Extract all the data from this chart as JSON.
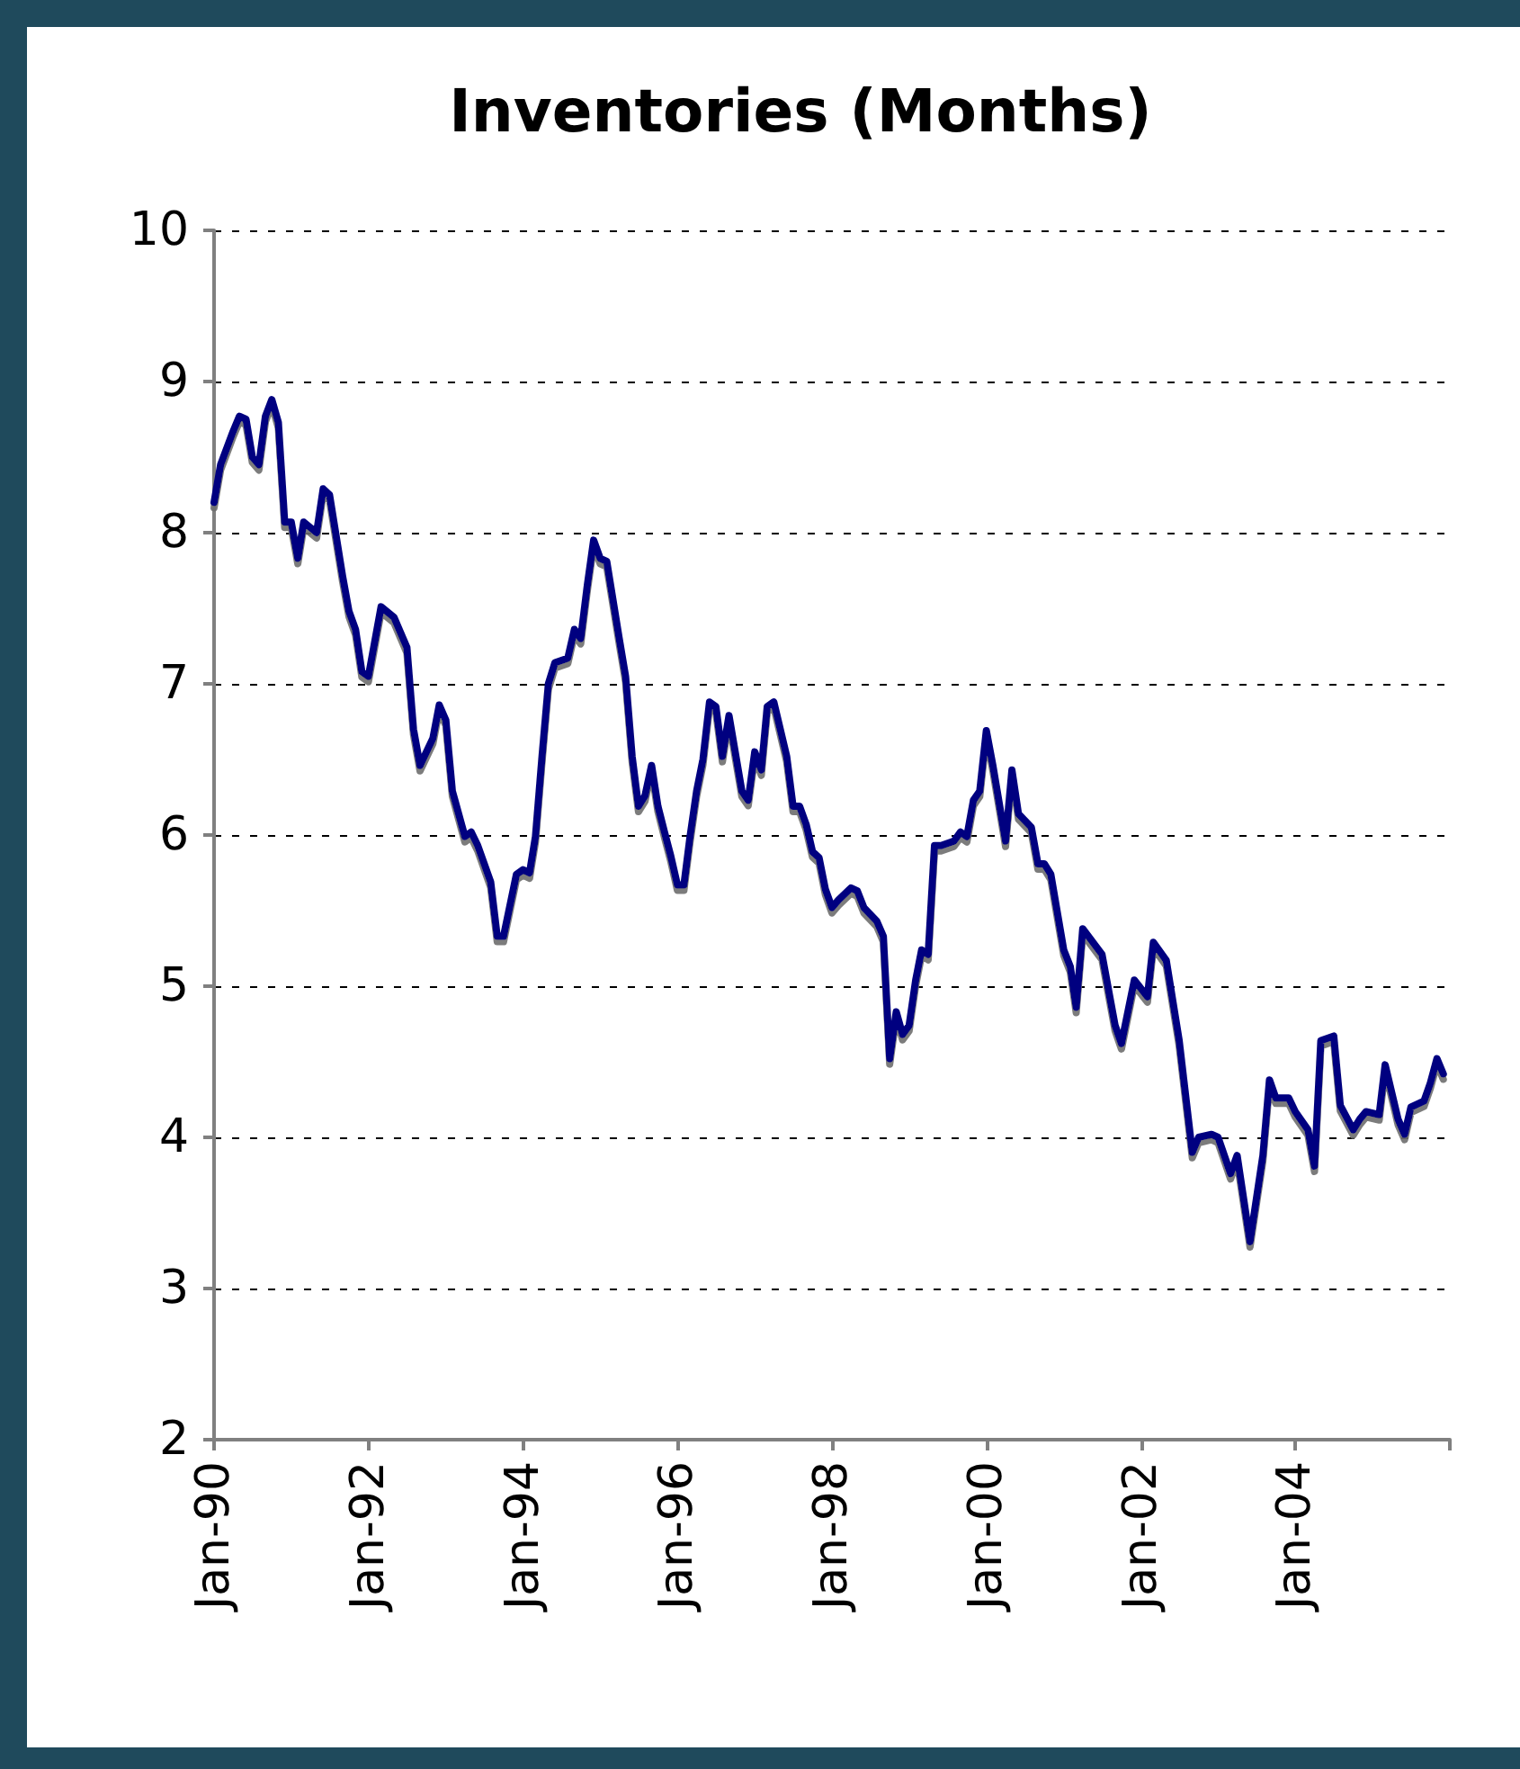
{
  "chart_data": {
    "type": "line",
    "title": "Inventories (Months)",
    "x": [
      "1990-01",
      "1990-02",
      "1990-04",
      "1990-05",
      "1990-06",
      "1990-07",
      "1990-08",
      "1990-09",
      "1990-10",
      "1990-11",
      "1990-12",
      "1991-01",
      "1991-02",
      "1991-03",
      "1991-05",
      "1991-06",
      "1991-07",
      "1991-09",
      "1991-10",
      "1991-11",
      "1991-12",
      "1992-01",
      "1992-03",
      "1992-05",
      "1992-07",
      "1992-08",
      "1992-09",
      "1992-11",
      "1992-12",
      "1993-01",
      "1993-02",
      "1993-04",
      "1993-05",
      "1993-06",
      "1993-08",
      "1993-09",
      "1993-10",
      "1993-12",
      "1994-01",
      "1994-02",
      "1994-03",
      "1994-04",
      "1994-05",
      "1994-06",
      "1994-08",
      "1994-09",
      "1994-10",
      "1994-11",
      "1994-12",
      "1995-01",
      "1995-02",
      "1995-04",
      "1995-05",
      "1995-06",
      "1995-07",
      "1995-08",
      "1995-09",
      "1995-10",
      "1995-11",
      "1995-12",
      "1996-01",
      "1996-02",
      "1996-03",
      "1996-04",
      "1996-05",
      "1996-06",
      "1996-07",
      "1996-08",
      "1996-09",
      "1996-11",
      "1996-12",
      "1997-01",
      "1997-02",
      "1997-03",
      "1997-04",
      "1997-06",
      "1997-07",
      "1997-08",
      "1997-09",
      "1997-10",
      "1997-11",
      "1997-12",
      "1998-01",
      "1998-02",
      "1998-04",
      "1998-05",
      "1998-06",
      "1998-08",
      "1998-09",
      "1998-10",
      "1998-11",
      "1998-12",
      "1999-01",
      "1999-02",
      "1999-03",
      "1999-04",
      "1999-05",
      "1999-06",
      "1999-08",
      "1999-09",
      "1999-10",
      "1999-11",
      "1999-12",
      "2000-01",
      "2000-02",
      "2000-04",
      "2000-05",
      "2000-06",
      "2000-08",
      "2000-09",
      "2000-10",
      "2000-11",
      "2001-01",
      "2001-02",
      "2001-03",
      "2001-04",
      "2001-07",
      "2001-09",
      "2001-10",
      "2001-12",
      "2002-02",
      "2002-03",
      "2002-05",
      "2002-07",
      "2002-09",
      "2002-10",
      "2002-12",
      "2003-01",
      "2003-03",
      "2003-04",
      "2003-06",
      "2003-08",
      "2003-09",
      "2003-10",
      "2003-12",
      "2004-01",
      "2004-03",
      "2004-04",
      "2004-05",
      "2004-07",
      "2004-08",
      "2004-10",
      "2004-11",
      "2004-12",
      "2005-02",
      "2005-03",
      "2005-05",
      "2005-06",
      "2005-07",
      "2005-09",
      "2005-10",
      "2005-11",
      "2005-12"
    ],
    "series": [
      {
        "color": "#000080",
        "values": [
          8.2,
          8.45,
          8.67,
          8.77,
          8.75,
          8.5,
          8.45,
          8.77,
          8.88,
          8.73,
          8.07,
          8.07,
          7.83,
          8.07,
          8.0,
          8.29,
          8.25,
          7.71,
          7.48,
          7.36,
          7.08,
          7.05,
          7.51,
          7.44,
          7.24,
          6.7,
          6.46,
          6.64,
          6.86,
          6.76,
          6.29,
          5.99,
          6.02,
          5.93,
          5.69,
          5.33,
          5.33,
          5.74,
          5.77,
          5.75,
          5.99,
          6.52,
          7.0,
          7.14,
          7.17,
          7.36,
          7.3,
          7.65,
          7.95,
          7.83,
          7.81,
          7.3,
          7.05,
          6.52,
          6.19,
          6.26,
          6.46,
          6.19,
          6.02,
          5.86,
          5.67,
          5.67,
          5.99,
          6.29,
          6.5,
          6.88,
          6.85,
          6.52,
          6.79,
          6.29,
          6.23,
          6.55,
          6.43,
          6.85,
          6.88,
          6.52,
          6.19,
          6.19,
          6.07,
          5.89,
          5.85,
          5.64,
          5.52,
          5.57,
          5.65,
          5.63,
          5.52,
          5.43,
          5.33,
          4.52,
          4.83,
          4.68,
          4.74,
          5.04,
          5.24,
          5.21,
          5.93,
          5.93,
          5.96,
          6.02,
          5.99,
          6.23,
          6.29,
          6.69,
          6.46,
          5.96,
          6.43,
          6.14,
          6.05,
          5.81,
          5.81,
          5.74,
          5.24,
          5.13,
          4.86,
          5.38,
          5.21,
          4.74,
          4.62,
          5.04,
          4.93,
          5.29,
          5.17,
          4.64,
          3.9,
          4.0,
          4.02,
          4.0,
          3.76,
          3.88,
          3.31,
          3.88,
          4.38,
          4.26,
          4.26,
          4.17,
          4.05,
          3.81,
          4.64,
          4.67,
          4.21,
          4.05,
          4.12,
          4.17,
          4.15,
          4.48,
          4.12,
          4.02,
          4.2,
          4.24,
          4.36,
          4.52,
          4.42
        ]
      }
    ],
    "xlim": [
      "1990-01",
      "2006-01"
    ],
    "xticks": [
      {
        "value": "1990-01",
        "label": "Jan-90"
      },
      {
        "value": "1992-01",
        "label": "Jan-92"
      },
      {
        "value": "1994-01",
        "label": "Jan-94"
      },
      {
        "value": "1996-01",
        "label": "Jan-96"
      },
      {
        "value": "1998-01",
        "label": "Jan-98"
      },
      {
        "value": "2000-01",
        "label": "Jan-00"
      },
      {
        "value": "2002-01",
        "label": "Jan-02"
      },
      {
        "value": "2004-01",
        "label": "Jan-04"
      },
      {
        "value": "2006-01",
        "label": null
      }
    ],
    "ylim": [
      2,
      10
    ],
    "yticks": [
      2,
      3,
      4,
      5,
      6,
      7,
      8,
      9,
      10
    ],
    "grid": "y",
    "line_style": "solid",
    "marker": "none"
  }
}
